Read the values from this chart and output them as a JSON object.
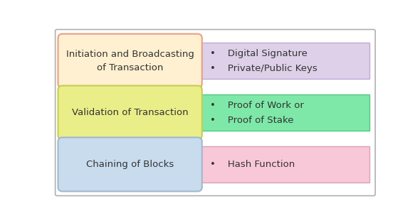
{
  "rows": [
    {
      "left_text": "Initiation and Broadcasting\nof Transaction",
      "left_bg": "#FEF0D0",
      "left_border": "#E8A080",
      "right_text": "•    Digital Signature\n•    Private/Public Keys",
      "right_bg": "#DDD0E8",
      "right_border": "#C0A8D8"
    },
    {
      "left_text": "Validation of Transaction",
      "left_bg": "#EAEE88",
      "left_border": "#C8CC50",
      "right_text": "•    Proof of Work or\n•    Proof of Stake",
      "right_bg": "#7EE8A8",
      "right_border": "#50C880"
    },
    {
      "left_text": "Chaining of Blocks",
      "left_bg": "#C8DCEE",
      "left_border": "#A0B8D0",
      "right_text": "•    Hash Function",
      "right_bg": "#F8C8D8",
      "right_border": "#D8A0B8"
    }
  ],
  "fig_bg": "#FFFFFF",
  "outer_border_color": "#B0B0B0",
  "text_color": "#333333",
  "fontsize": 9.5
}
